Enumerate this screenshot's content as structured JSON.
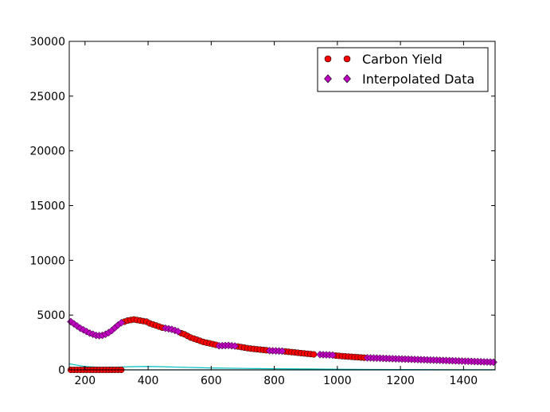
{
  "chart_data": {
    "type": "scatter",
    "title": "",
    "xlabel": "",
    "ylabel": "",
    "xlim": [
      150,
      1500
    ],
    "ylim": [
      0,
      30000
    ],
    "x_ticks": [
      200,
      400,
      600,
      800,
      1000,
      1200,
      1400
    ],
    "y_ticks": [
      0,
      5000,
      10000,
      15000,
      20000,
      25000,
      30000
    ],
    "grid": false,
    "legend": {
      "position": "top-right",
      "entries": [
        "Carbon Yield",
        "Interpolated Data"
      ]
    },
    "colors": {
      "carbon_yield": "#ff0000",
      "interpolated": "#c000c0",
      "cyan_line": "#00bfbf",
      "teal_line": "#008080"
    },
    "series": [
      {
        "name": "Carbon Yield",
        "marker": "circle",
        "x": [
          155,
          165,
          175,
          185,
          195,
          205,
          215,
          225,
          235,
          245,
          255,
          265,
          275,
          285,
          295,
          305,
          315,
          325,
          335,
          345,
          355,
          365,
          375,
          385,
          395,
          405,
          415,
          425,
          435,
          445,
          505,
          515,
          525,
          535,
          545,
          555,
          565,
          575,
          585,
          595,
          605,
          615,
          685,
          695,
          705,
          715,
          725,
          735,
          745,
          755,
          765,
          775,
          835,
          845,
          855,
          865,
          875,
          885,
          895,
          905,
          915,
          925,
          995,
          1005,
          1015,
          1025,
          1035,
          1045,
          1055,
          1065,
          1075,
          1085
        ],
        "y": [
          0,
          0,
          0,
          0,
          0,
          0,
          0,
          0,
          0,
          0,
          0,
          0,
          0,
          0,
          0,
          0,
          0,
          4400,
          4500,
          4550,
          4600,
          4550,
          4500,
          4450,
          4400,
          4250,
          4150,
          4050,
          3950,
          3850,
          3350,
          3250,
          3100,
          2950,
          2850,
          2750,
          2650,
          2550,
          2480,
          2420,
          2350,
          2280,
          2130,
          2080,
          2030,
          1980,
          1940,
          1910,
          1880,
          1850,
          1820,
          1790,
          1680,
          1650,
          1620,
          1590,
          1560,
          1530,
          1500,
          1470,
          1440,
          1410,
          1300,
          1280,
          1250,
          1230,
          1210,
          1190,
          1170,
          1150,
          1130,
          1110
        ]
      },
      {
        "name": "Interpolated Data",
        "marker": "diamond",
        "x": [
          155,
          165,
          175,
          185,
          195,
          205,
          215,
          225,
          235,
          245,
          255,
          265,
          275,
          285,
          295,
          305,
          315,
          455,
          465,
          475,
          485,
          495,
          625,
          635,
          645,
          655,
          665,
          675,
          785,
          795,
          805,
          815,
          825,
          945,
          955,
          965,
          975,
          985,
          1095,
          1105,
          1115,
          1125,
          1135,
          1145,
          1155,
          1165,
          1175,
          1185,
          1195,
          1205,
          1215,
          1225,
          1235,
          1245,
          1255,
          1265,
          1275,
          1285,
          1295,
          1305,
          1315,
          1325,
          1335,
          1345,
          1355,
          1365,
          1375,
          1385,
          1395,
          1405,
          1415,
          1425,
          1435,
          1445,
          1455,
          1465,
          1475,
          1485,
          1495
        ],
        "y": [
          4400,
          4200,
          4000,
          3800,
          3650,
          3500,
          3350,
          3250,
          3150,
          3120,
          3150,
          3250,
          3400,
          3600,
          3850,
          4100,
          4300,
          3800,
          3750,
          3700,
          3600,
          3500,
          2200,
          2210,
          2220,
          2230,
          2200,
          2170,
          1750,
          1740,
          1730,
          1720,
          1710,
          1400,
          1380,
          1370,
          1360,
          1350,
          1100,
          1090,
          1080,
          1070,
          1060,
          1050,
          1040,
          1030,
          1020,
          1010,
          1000,
          990,
          980,
          970,
          960,
          950,
          940,
          930,
          920,
          910,
          900,
          890,
          880,
          870,
          860,
          850,
          840,
          830,
          820,
          810,
          800,
          790,
          780,
          770,
          760,
          750,
          740,
          730,
          720,
          710,
          700
        ]
      },
      {
        "name": "",
        "marker": "line",
        "x": [
          150,
          200,
          250,
          300,
          350,
          400,
          450,
          500,
          600,
          700,
          800,
          900,
          1000,
          1100,
          1200,
          1300,
          1400,
          1500
        ],
        "y": [
          550,
          300,
          230,
          250,
          290,
          310,
          280,
          240,
          170,
          130,
          100,
          80,
          60,
          40,
          30,
          20,
          15,
          10
        ]
      },
      {
        "name": "",
        "marker": "line",
        "x": [
          150,
          300,
          600,
          900,
          1200,
          1500
        ],
        "y": [
          0,
          0,
          0,
          0,
          0,
          0
        ]
      }
    ]
  }
}
